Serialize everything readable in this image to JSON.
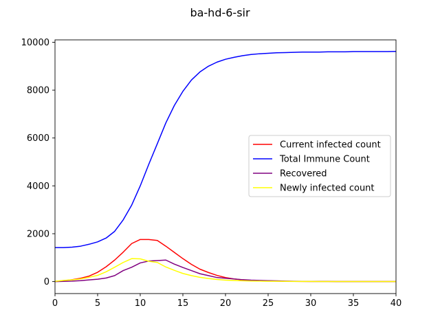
{
  "chart_data": {
    "type": "line",
    "title": "ba-hd-6-sir",
    "xlabel": "",
    "ylabel": "",
    "xlim": [
      0,
      40
    ],
    "ylim": [
      -500,
      10100
    ],
    "xticks": [
      0,
      5,
      10,
      15,
      20,
      25,
      30,
      35,
      40
    ],
    "yticks": [
      0,
      2000,
      4000,
      6000,
      8000,
      10000
    ],
    "legend_position": "center-right",
    "x": [
      0,
      1,
      2,
      3,
      4,
      5,
      6,
      7,
      8,
      9,
      10,
      11,
      12,
      13,
      14,
      15,
      16,
      17,
      18,
      19,
      20,
      21,
      22,
      23,
      24,
      25,
      26,
      27,
      28,
      29,
      30,
      31,
      32,
      33,
      34,
      35,
      36,
      37,
      38,
      39,
      40
    ],
    "series": [
      {
        "name": "Current infected count",
        "color": "#ff0000",
        "values": [
          10,
          40,
          80,
          140,
          230,
          390,
          620,
          900,
          1230,
          1590,
          1760,
          1760,
          1720,
          1480,
          1220,
          960,
          720,
          520,
          380,
          260,
          170,
          110,
          70,
          50,
          40,
          30,
          20,
          15,
          10,
          8,
          6,
          5,
          5,
          4,
          3,
          3,
          2,
          2,
          2,
          1,
          1
        ]
      },
      {
        "name": "Total Immune Count",
        "color": "#0000ff",
        "values": [
          1420,
          1420,
          1440,
          1480,
          1560,
          1660,
          1820,
          2100,
          2580,
          3200,
          4000,
          4900,
          5760,
          6630,
          7360,
          7950,
          8420,
          8760,
          9000,
          9170,
          9290,
          9370,
          9440,
          9490,
          9520,
          9540,
          9560,
          9570,
          9580,
          9590,
          9590,
          9590,
          9600,
          9600,
          9600,
          9610,
          9610,
          9610,
          9610,
          9610,
          9620
        ]
      },
      {
        "name": "Recovered",
        "color": "#800080",
        "values": [
          0,
          10,
          20,
          40,
          70,
          100,
          150,
          250,
          460,
          600,
          780,
          860,
          880,
          900,
          730,
          590,
          460,
          330,
          250,
          170,
          140,
          110,
          80,
          60,
          50,
          40,
          30,
          20,
          15,
          10,
          8,
          6,
          5,
          4,
          3,
          3,
          2,
          2,
          2,
          1,
          1
        ]
      },
      {
        "name": "Newly infected count",
        "color": "#ffff00",
        "values": [
          10,
          50,
          70,
          110,
          180,
          260,
          410,
          600,
          800,
          960,
          950,
          850,
          800,
          610,
          470,
          340,
          250,
          180,
          130,
          90,
          60,
          45,
          35,
          25,
          20,
          15,
          12,
          10,
          8,
          6,
          5,
          4,
          4,
          3,
          3,
          2,
          2,
          2,
          1,
          1,
          1
        ]
      }
    ]
  }
}
